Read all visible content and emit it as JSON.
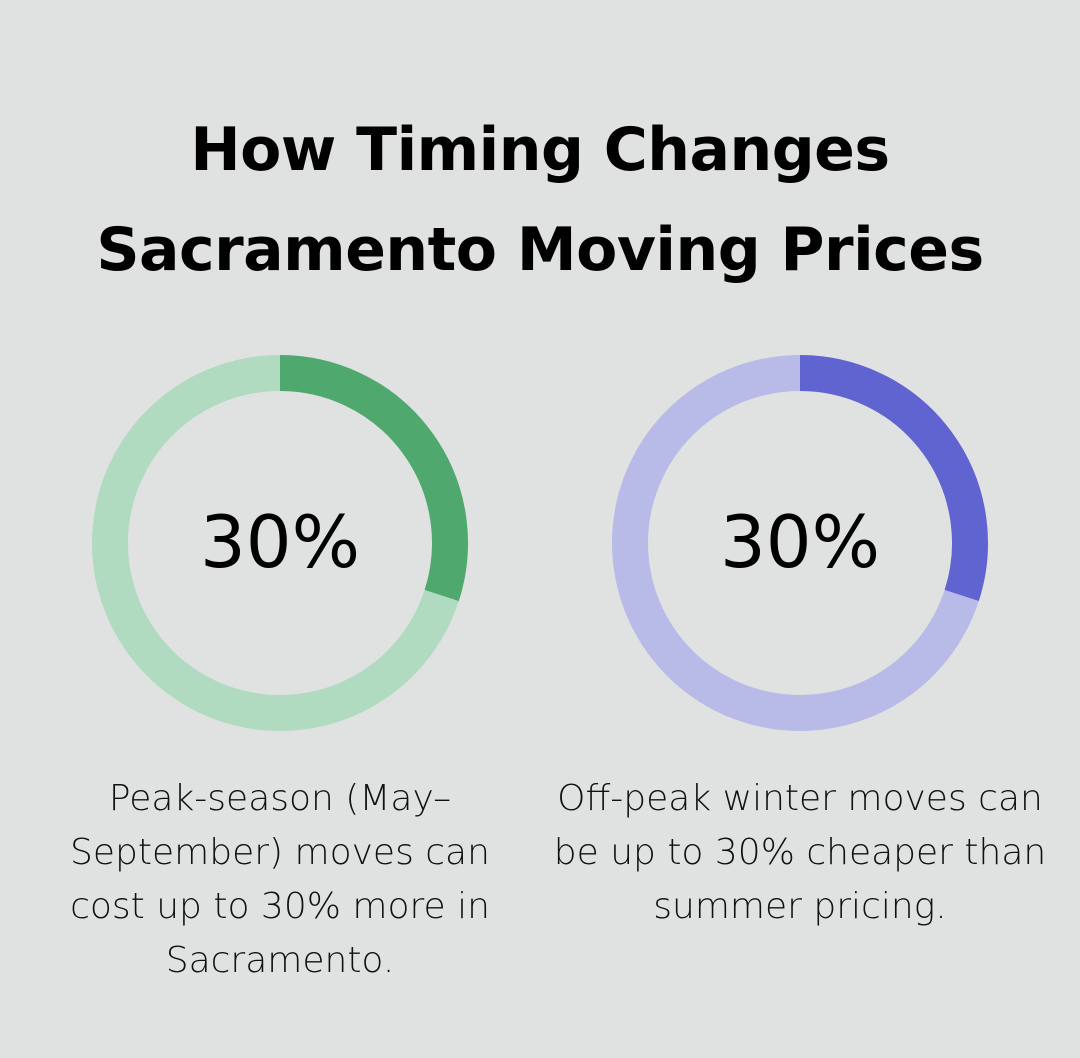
{
  "title_lines": [
    "How Timing Changes",
    "Sacramento Moving Prices"
  ],
  "chart_data": [
    {
      "type": "pie",
      "variant": "donut",
      "center_label": "30%",
      "values": [
        30,
        70
      ],
      "colors": {
        "value": "#4fa86e",
        "remainder": "#b0dbc1"
      },
      "caption": "Peak-season (May–September) moves can cost up to 30% more in Sacramento."
    },
    {
      "type": "pie",
      "variant": "donut",
      "center_label": "30%",
      "values": [
        30,
        70
      ],
      "colors": {
        "value": "#6064d1",
        "remainder": "#b8bbe8"
      },
      "caption": "Off-peak winter moves can be up to 30% cheaper than summer pricing."
    }
  ]
}
